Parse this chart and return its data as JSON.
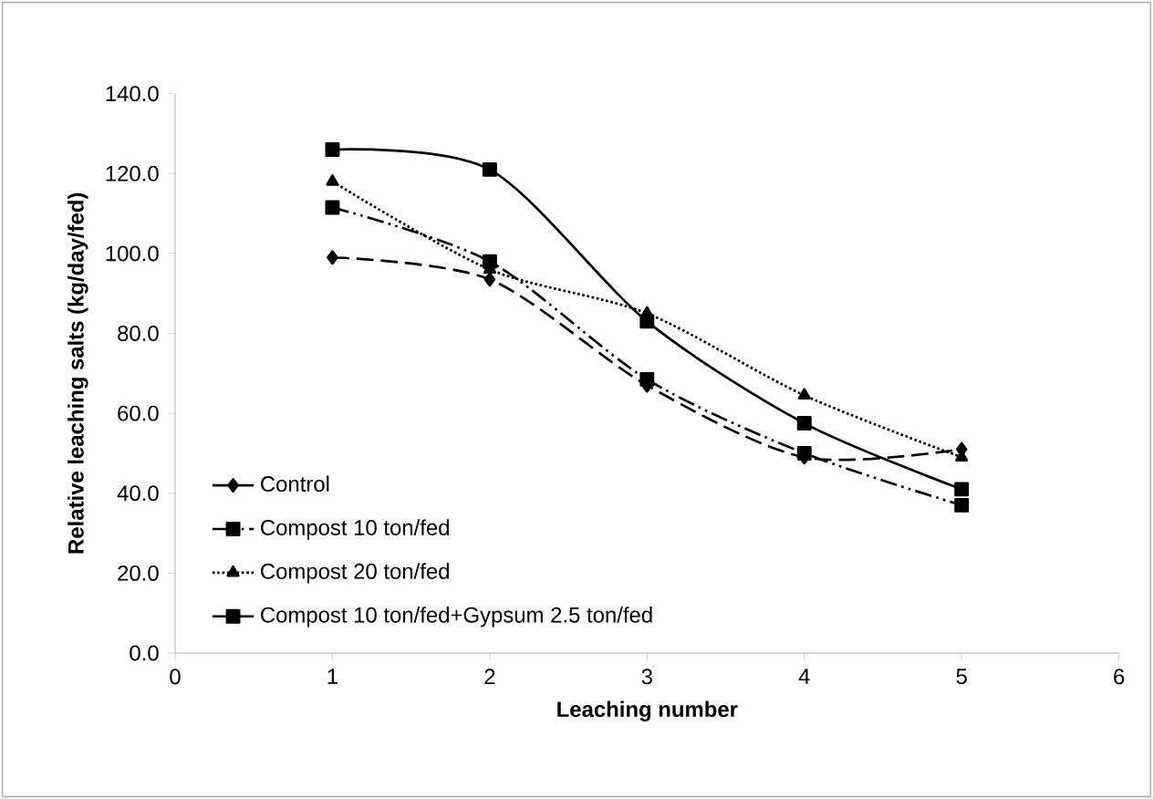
{
  "chart_data": {
    "type": "line",
    "xlabel": "Leaching number",
    "ylabel": "Relative leaching salts (kg/day/fed)",
    "x": [
      1,
      2,
      3,
      4,
      5
    ],
    "series": [
      {
        "name": "Control",
        "color": "#000000",
        "marker": "diamond",
        "line_style": "dashed",
        "values": [
          99.0,
          93.5,
          67.0,
          49.0,
          51.0
        ]
      },
      {
        "name": "Compost 10 ton/fed",
        "color": "#000000",
        "marker": "square",
        "line_style": "dashdotdotted",
        "values": [
          111.5,
          98.0,
          68.5,
          50.0,
          37.0
        ]
      },
      {
        "name": "Compost 20 ton/fed",
        "color": "#000000",
        "marker": "triangle",
        "line_style": "dotted",
        "values": [
          118.0,
          96.0,
          85.0,
          64.5,
          49.0
        ]
      },
      {
        "name": "Compost 10 ton/fed+Gypsum 2.5 ton/fed",
        "color": "#000000",
        "marker": "square",
        "line_style": "solid",
        "values": [
          126.0,
          121.0,
          83.0,
          57.5,
          41.0
        ]
      }
    ],
    "xlim": [
      0,
      6
    ],
    "ylim": [
      0,
      140
    ],
    "xticks": [
      0,
      1,
      2,
      3,
      4,
      5,
      6
    ],
    "yticks": [
      {
        "value": 0,
        "label": "0.0"
      },
      {
        "value": 20,
        "label": "20.0"
      },
      {
        "value": 40,
        "label": "40.0"
      },
      {
        "value": 60,
        "label": "60.0"
      },
      {
        "value": 80,
        "label": "80.0"
      },
      {
        "value": 100,
        "label": "100.0"
      },
      {
        "value": 120,
        "label": "120.0"
      },
      {
        "value": 140,
        "label": "140.0"
      }
    ],
    "grid": false,
    "legend": "bottom left"
  }
}
